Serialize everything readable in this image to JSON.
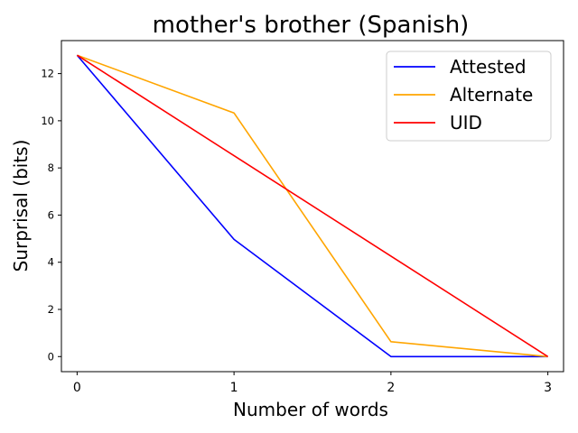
{
  "chart_data": {
    "type": "line",
    "title": "mother's brother (Spanish)",
    "xlabel": "Number of words",
    "ylabel": "Surprisal (bits)",
    "x": [
      0,
      1,
      2,
      3
    ],
    "xticks": [
      "0",
      "1",
      "2",
      "3"
    ],
    "yticks": [
      "0",
      "2",
      "4",
      "6",
      "8",
      "10",
      "12"
    ],
    "xlim": [
      -0.1,
      3.1
    ],
    "ylim": [
      -0.64,
      13.4
    ],
    "grid": false,
    "legend_position": "top-right",
    "series": [
      {
        "name": "Attested",
        "color": "#0000ff",
        "values": [
          12.78,
          4.97,
          0.0,
          0.0
        ]
      },
      {
        "name": "Alternate",
        "color": "#ffa500",
        "values": [
          12.78,
          10.33,
          0.63,
          0.0
        ]
      },
      {
        "name": "UID",
        "color": "#ff0000",
        "values": [
          12.78,
          8.52,
          4.26,
          0.0
        ]
      }
    ]
  }
}
